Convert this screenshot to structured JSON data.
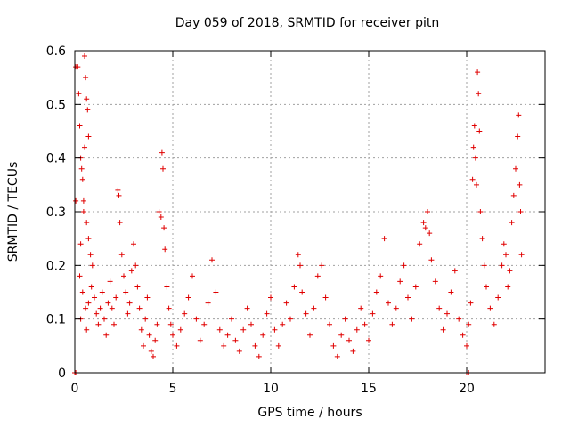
{
  "chart_data": {
    "type": "scatter",
    "title": "Day 059 of 2018, SRMTID for receiver pitn",
    "xlabel": "GPS time / hours",
    "ylabel": "SRMTID / TECUs",
    "xlim": [
      0,
      24
    ],
    "ylim": [
      0,
      0.6
    ],
    "xticks": [
      0,
      5,
      10,
      15,
      20
    ],
    "yticks": [
      0,
      0.1,
      0.2,
      0.3,
      0.4,
      0.5,
      0.6
    ],
    "ytick_labels": [
      "0",
      "0.1",
      "0.2",
      "0.3",
      "0.4",
      "0.5",
      "0.6"
    ],
    "grid": true,
    "marker": "+",
    "color": "#e00000",
    "series": [
      {
        "name": "SRMTID",
        "points": [
          [
            0.05,
            0.57
          ],
          [
            0.15,
            0.57
          ],
          [
            0.2,
            0.52
          ],
          [
            0.25,
            0.46
          ],
          [
            0.3,
            0.4
          ],
          [
            0.35,
            0.38
          ],
          [
            0.4,
            0.36
          ],
          [
            0.45,
            0.32
          ],
          [
            0.5,
            0.59
          ],
          [
            0.55,
            0.55
          ],
          [
            0.6,
            0.51
          ],
          [
            0.65,
            0.49
          ],
          [
            0.7,
            0.44
          ],
          [
            0.5,
            0.42
          ],
          [
            0.45,
            0.3
          ],
          [
            0.6,
            0.28
          ],
          [
            0.7,
            0.25
          ],
          [
            0.8,
            0.22
          ],
          [
            0.9,
            0.2
          ],
          [
            0.3,
            0.24
          ],
          [
            0.25,
            0.18
          ],
          [
            0.4,
            0.15
          ],
          [
            0.55,
            0.12
          ],
          [
            0.6,
            0.08
          ],
          [
            0.3,
            0.1
          ],
          [
            0.7,
            0.13
          ],
          [
            0.85,
            0.16
          ],
          [
            1.0,
            0.14
          ],
          [
            1.1,
            0.11
          ],
          [
            1.2,
            0.09
          ],
          [
            1.3,
            0.12
          ],
          [
            1.4,
            0.15
          ],
          [
            1.5,
            0.1
          ],
          [
            1.6,
            0.07
          ],
          [
            1.7,
            0.13
          ],
          [
            1.8,
            0.17
          ],
          [
            1.9,
            0.12
          ],
          [
            2.0,
            0.09
          ],
          [
            2.1,
            0.14
          ],
          [
            2.2,
            0.34
          ],
          [
            2.25,
            0.33
          ],
          [
            2.3,
            0.28
          ],
          [
            2.4,
            0.22
          ],
          [
            2.5,
            0.18
          ],
          [
            2.6,
            0.15
          ],
          [
            2.7,
            0.11
          ],
          [
            2.8,
            0.13
          ],
          [
            2.9,
            0.19
          ],
          [
            3.0,
            0.24
          ],
          [
            3.1,
            0.2
          ],
          [
            3.2,
            0.16
          ],
          [
            3.3,
            0.12
          ],
          [
            3.4,
            0.08
          ],
          [
            3.5,
            0.05
          ],
          [
            3.6,
            0.1
          ],
          [
            3.7,
            0.14
          ],
          [
            3.8,
            0.07
          ],
          [
            3.9,
            0.04
          ],
          [
            4.0,
            0.03
          ],
          [
            4.1,
            0.06
          ],
          [
            4.2,
            0.09
          ],
          [
            4.3,
            0.3
          ],
          [
            4.4,
            0.29
          ],
          [
            4.45,
            0.41
          ],
          [
            4.5,
            0.38
          ],
          [
            4.55,
            0.27
          ],
          [
            4.6,
            0.23
          ],
          [
            4.7,
            0.16
          ],
          [
            4.8,
            0.12
          ],
          [
            4.9,
            0.09
          ],
          [
            5.0,
            0.07
          ],
          [
            5.2,
            0.05
          ],
          [
            5.4,
            0.08
          ],
          [
            5.6,
            0.11
          ],
          [
            5.8,
            0.14
          ],
          [
            6.0,
            0.18
          ],
          [
            6.2,
            0.1
          ],
          [
            6.4,
            0.06
          ],
          [
            6.6,
            0.09
          ],
          [
            6.8,
            0.13
          ],
          [
            7.0,
            0.21
          ],
          [
            7.2,
            0.15
          ],
          [
            7.4,
            0.08
          ],
          [
            7.6,
            0.05
          ],
          [
            7.8,
            0.07
          ],
          [
            8.0,
            0.1
          ],
          [
            8.2,
            0.06
          ],
          [
            8.4,
            0.04
          ],
          [
            8.6,
            0.08
          ],
          [
            8.8,
            0.12
          ],
          [
            9.0,
            0.09
          ],
          [
            9.2,
            0.05
          ],
          [
            9.4,
            0.03
          ],
          [
            9.6,
            0.07
          ],
          [
            9.8,
            0.11
          ],
          [
            10.0,
            0.14
          ],
          [
            10.2,
            0.08
          ],
          [
            10.4,
            0.05
          ],
          [
            10.6,
            0.09
          ],
          [
            10.8,
            0.13
          ],
          [
            11.0,
            0.1
          ],
          [
            11.2,
            0.16
          ],
          [
            11.4,
            0.22
          ],
          [
            11.5,
            0.2
          ],
          [
            11.6,
            0.15
          ],
          [
            11.8,
            0.11
          ],
          [
            12.0,
            0.07
          ],
          [
            12.2,
            0.12
          ],
          [
            12.4,
            0.18
          ],
          [
            12.6,
            0.2
          ],
          [
            12.8,
            0.14
          ],
          [
            13.0,
            0.09
          ],
          [
            13.2,
            0.05
          ],
          [
            13.4,
            0.03
          ],
          [
            13.6,
            0.07
          ],
          [
            13.8,
            0.1
          ],
          [
            14.0,
            0.06
          ],
          [
            14.2,
            0.04
          ],
          [
            14.4,
            0.08
          ],
          [
            14.6,
            0.12
          ],
          [
            14.8,
            0.09
          ],
          [
            15.0,
            0.06
          ],
          [
            15.2,
            0.11
          ],
          [
            15.4,
            0.15
          ],
          [
            15.6,
            0.18
          ],
          [
            15.8,
            0.25
          ],
          [
            16.0,
            0.13
          ],
          [
            16.2,
            0.09
          ],
          [
            16.4,
            0.12
          ],
          [
            16.6,
            0.17
          ],
          [
            16.8,
            0.2
          ],
          [
            17.0,
            0.14
          ],
          [
            17.2,
            0.1
          ],
          [
            17.4,
            0.16
          ],
          [
            17.6,
            0.24
          ],
          [
            17.8,
            0.28
          ],
          [
            17.9,
            0.27
          ],
          [
            18.0,
            0.3
          ],
          [
            18.1,
            0.26
          ],
          [
            18.2,
            0.21
          ],
          [
            18.4,
            0.17
          ],
          [
            18.6,
            0.12
          ],
          [
            18.8,
            0.08
          ],
          [
            19.0,
            0.11
          ],
          [
            19.2,
            0.15
          ],
          [
            19.4,
            0.19
          ],
          [
            19.6,
            0.1
          ],
          [
            19.8,
            0.07
          ],
          [
            20.0,
            0.05
          ],
          [
            20.1,
            0.09
          ],
          [
            20.2,
            0.13
          ],
          [
            20.3,
            0.36
          ],
          [
            20.35,
            0.42
          ],
          [
            20.4,
            0.46
          ],
          [
            20.45,
            0.4
          ],
          [
            20.5,
            0.35
          ],
          [
            20.55,
            0.56
          ],
          [
            20.6,
            0.52
          ],
          [
            20.65,
            0.45
          ],
          [
            20.7,
            0.3
          ],
          [
            20.8,
            0.25
          ],
          [
            20.9,
            0.2
          ],
          [
            21.0,
            0.16
          ],
          [
            21.2,
            0.12
          ],
          [
            21.4,
            0.09
          ],
          [
            21.6,
            0.14
          ],
          [
            21.8,
            0.2
          ],
          [
            21.9,
            0.24
          ],
          [
            22.0,
            0.22
          ],
          [
            22.1,
            0.16
          ],
          [
            22.2,
            0.19
          ],
          [
            22.3,
            0.28
          ],
          [
            22.4,
            0.33
          ],
          [
            22.5,
            0.38
          ],
          [
            22.6,
            0.44
          ],
          [
            22.65,
            0.48
          ],
          [
            22.7,
            0.35
          ],
          [
            22.75,
            0.3
          ],
          [
            22.8,
            0.22
          ],
          [
            0.05,
            0.32
          ],
          [
            0.0,
            0.0
          ],
          [
            0.05,
            0.0
          ],
          [
            20.0,
            0.0
          ],
          [
            20.1,
            0.0
          ]
        ]
      }
    ]
  }
}
